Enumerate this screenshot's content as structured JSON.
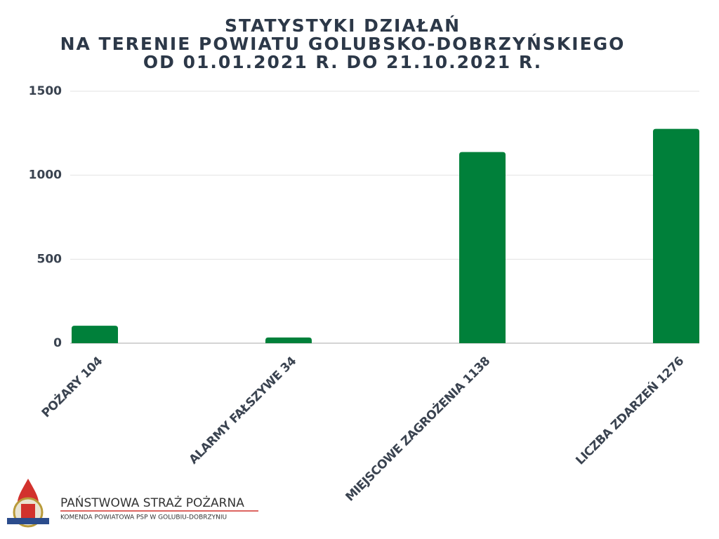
{
  "chart_data": {
    "type": "bar",
    "title": [
      "STATYSTYKI DZIAŁAŃ",
      "NA TERENIE POWIATU GOLUBSKO-DOBRZYŃSKIEGO",
      "OD 01.01.2021 R. DO 21.10.2021 R."
    ],
    "categories": [
      "POŻARY 104",
      "ALARMY FAŁSZYWE 34",
      "MIEJSCOWE ZAGROŻENIA 1138",
      "LICZBA ZDARZEŃ 1276"
    ],
    "values": [
      104,
      34,
      1138,
      1276
    ],
    "color": "#00803a",
    "ylim": [
      0,
      1500
    ],
    "yticks": [
      0,
      500,
      1000,
      1500
    ],
    "grid": true
  },
  "logo": {
    "name": "PAŃSTWOWA STRAŻ POŻARNA",
    "subtitle": "KOMENDA POWIATOWA PSP W GOLUBIU-DOBRZYNIU"
  }
}
